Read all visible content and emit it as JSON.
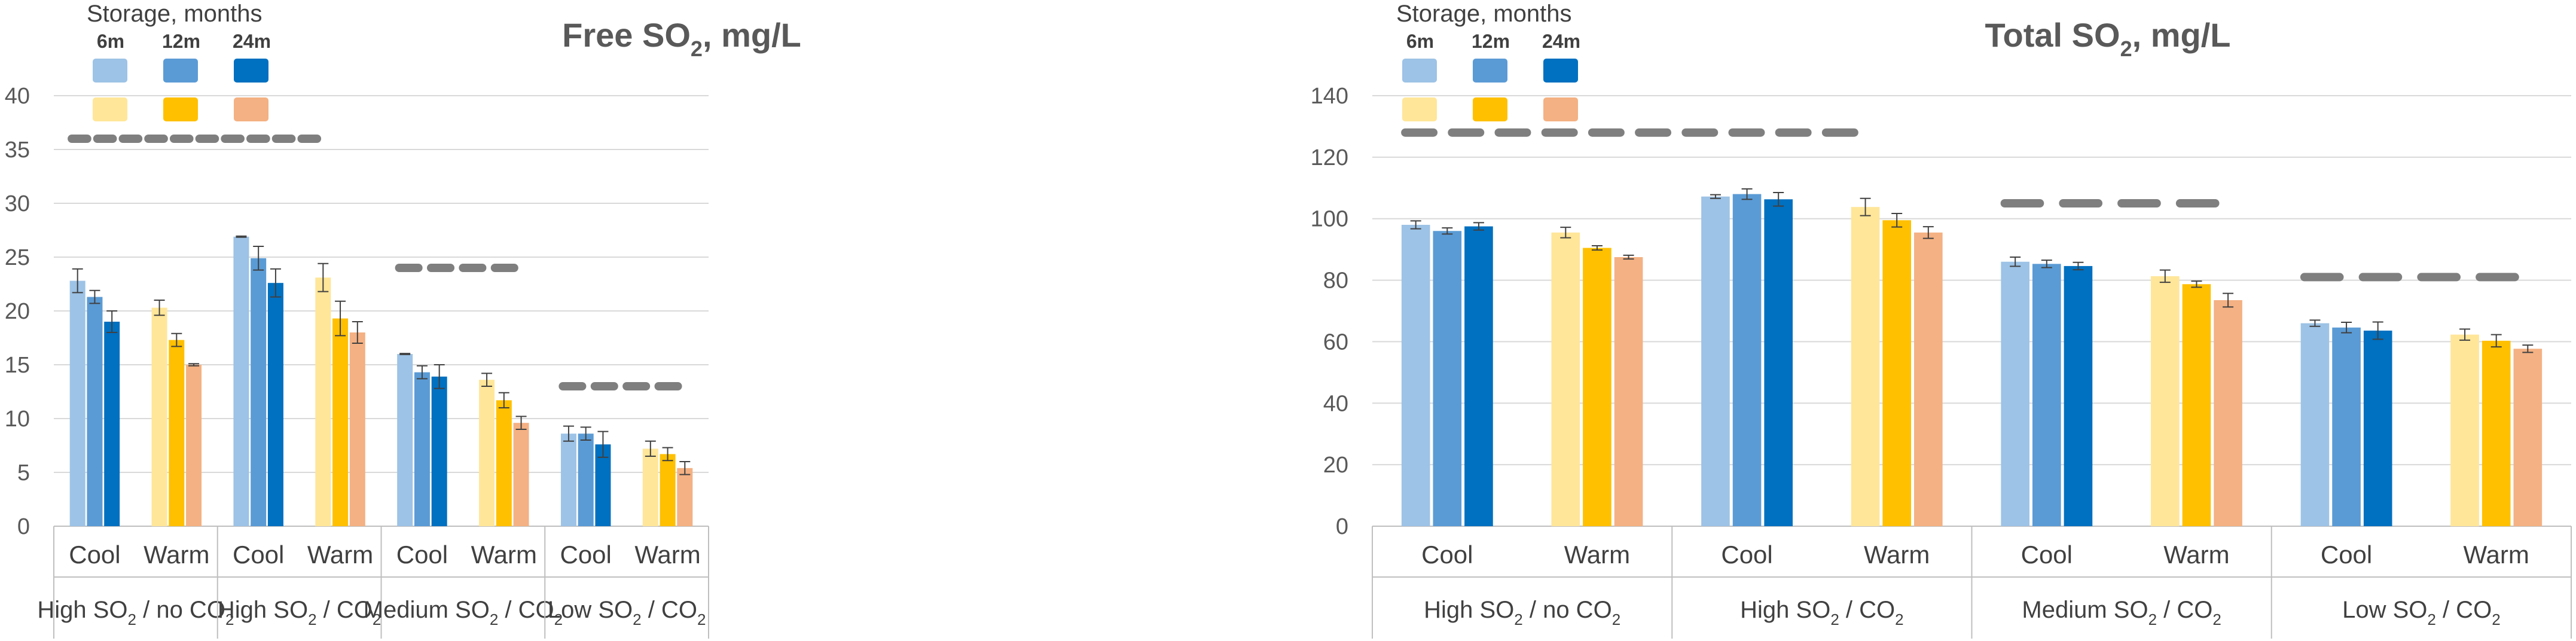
{
  "legend": {
    "title": "Storage, months",
    "labels": [
      "6m",
      "12m",
      "24m"
    ],
    "cool_colors": [
      "#9DC3E6",
      "#5B9BD5",
      "#0070C0"
    ],
    "warm_colors": [
      "#FFE699",
      "#FFC000",
      "#F4B183"
    ],
    "dash_color": "#7F7F7F",
    "gridline_color": "#D9D9D9"
  },
  "chart_data": [
    {
      "type": "bar",
      "title": "Free SO",
      "title_sub": "2",
      "title_suffix": ", mg/L",
      "ylim": [
        0,
        40
      ],
      "yticks": [
        "0",
        "5",
        "10",
        "15",
        "20",
        "25",
        "30",
        "35",
        "40"
      ],
      "yticks_values": [
        0,
        5,
        10,
        15,
        20,
        25,
        30,
        35,
        40
      ],
      "groups": [
        {
          "name_pre": "High SO",
          "name_sub": "2",
          "name_post": " / no CO",
          "name_sub2": "2",
          "name_post2": "",
          "dash_value": 36,
          "dash_count": 10,
          "sub": [
            {
              "label": "Cool",
              "kind": "cool",
              "values": [
                22.8,
                21.3,
                19.0
              ],
              "errors": [
                1.1,
                0.6,
                1.0
              ]
            },
            {
              "label": "Warm",
              "kind": "warm",
              "values": [
                20.3,
                17.3,
                15.0
              ],
              "errors": [
                0.7,
                0.6,
                0.1
              ]
            }
          ]
        },
        {
          "name_pre": "High SO",
          "name_sub": "2",
          "name_post": " / CO",
          "name_sub2": "2",
          "name_post2": "",
          "dash_value": null,
          "dash_count": 0,
          "sub": [
            {
              "label": "Cool",
              "kind": "cool",
              "values": [
                26.9,
                24.9,
                22.6
              ],
              "errors": [
                0.05,
                1.1,
                1.3
              ]
            },
            {
              "label": "Warm",
              "kind": "warm",
              "values": [
                23.1,
                19.3,
                18.0
              ],
              "errors": [
                1.3,
                1.6,
                1.0
              ]
            }
          ]
        },
        {
          "name_pre": "Medium SO",
          "name_sub": "2",
          "name_post": " / CO",
          "name_sub2": "2",
          "name_post2": "",
          "dash_value": 24,
          "dash_count": 4,
          "sub": [
            {
              "label": "Cool",
              "kind": "cool",
              "values": [
                16.0,
                14.3,
                13.9
              ],
              "errors": [
                0.05,
                0.6,
                1.1
              ]
            },
            {
              "label": "Warm",
              "kind": "warm",
              "values": [
                13.6,
                11.7,
                9.6
              ],
              "errors": [
                0.6,
                0.7,
                0.6
              ]
            }
          ]
        },
        {
          "name_pre": "Low SO",
          "name_sub": "2",
          "name_post": " / CO",
          "name_sub2": "2",
          "name_post2": "",
          "dash_value": 13,
          "dash_count": 4,
          "sub": [
            {
              "label": "Cool",
              "kind": "cool",
              "values": [
                8.6,
                8.6,
                7.6
              ],
              "errors": [
                0.7,
                0.6,
                1.2
              ]
            },
            {
              "label": "Warm",
              "kind": "warm",
              "values": [
                7.2,
                6.7,
                5.4
              ],
              "errors": [
                0.7,
                0.6,
                0.6
              ]
            }
          ]
        }
      ]
    },
    {
      "type": "bar",
      "title": "Total SO",
      "title_sub": "2",
      "title_suffix": ", mg/L",
      "ylim": [
        0,
        140
      ],
      "yticks": [
        "0",
        "20",
        "40",
        "60",
        "80",
        "100",
        "120",
        "140"
      ],
      "yticks_values": [
        0,
        20,
        40,
        60,
        80,
        100,
        120,
        140
      ],
      "groups": [
        {
          "name_pre": "High SO",
          "name_sub": "2",
          "name_post": " / no CO",
          "name_sub2": "2",
          "name_post2": "",
          "dash_value": 128,
          "dash_count": 10,
          "sub": [
            {
              "label": "Cool",
              "kind": "cool",
              "values": [
                98,
                96,
                97.5
              ],
              "errors": [
                1.3,
                1.0,
                1.2
              ]
            },
            {
              "label": "Warm",
              "kind": "warm",
              "values": [
                95.5,
                90.5,
                87.5
              ],
              "errors": [
                1.7,
                0.7,
                0.6
              ]
            }
          ]
        },
        {
          "name_pre": "High SO",
          "name_sub": "2",
          "name_post": " / CO",
          "name_sub2": "2",
          "name_post2": "",
          "dash_value": null,
          "dash_count": 0,
          "sub": [
            {
              "label": "Cool",
              "kind": "cool",
              "values": [
                107.2,
                108.0,
                106.3
              ],
              "errors": [
                0.6,
                1.7,
                2.2
              ]
            },
            {
              "label": "Warm",
              "kind": "warm",
              "values": [
                103.8,
                99.5,
                95.5
              ],
              "errors": [
                2.8,
                2.2,
                1.9
              ]
            }
          ]
        },
        {
          "name_pre": "Medium SO",
          "name_sub": "2",
          "name_post": " / CO",
          "name_sub2": "2",
          "name_post2": "",
          "dash_value": 105,
          "dash_count": 4,
          "sub": [
            {
              "label": "Cool",
              "kind": "cool",
              "values": [
                86.0,
                85.3,
                84.6
              ],
              "errors": [
                1.5,
                1.2,
                1.2
              ]
            },
            {
              "label": "Warm",
              "kind": "warm",
              "values": [
                81.3,
                78.7,
                73.5
              ],
              "errors": [
                2.0,
                1.0,
                2.2
              ]
            }
          ]
        },
        {
          "name_pre": "Low SO",
          "name_sub": "2",
          "name_post": " / CO",
          "name_sub2": "2",
          "name_post2": "",
          "dash_value": 81,
          "dash_count": 4,
          "sub": [
            {
              "label": "Cool",
              "kind": "cool",
              "values": [
                66.0,
                64.6,
                63.6
              ],
              "errors": [
                1.0,
                1.7,
                2.8
              ]
            },
            {
              "label": "Warm",
              "kind": "warm",
              "values": [
                62.3,
                60.3,
                57.7
              ],
              "errors": [
                1.8,
                2.0,
                1.2
              ]
            }
          ]
        }
      ]
    }
  ]
}
